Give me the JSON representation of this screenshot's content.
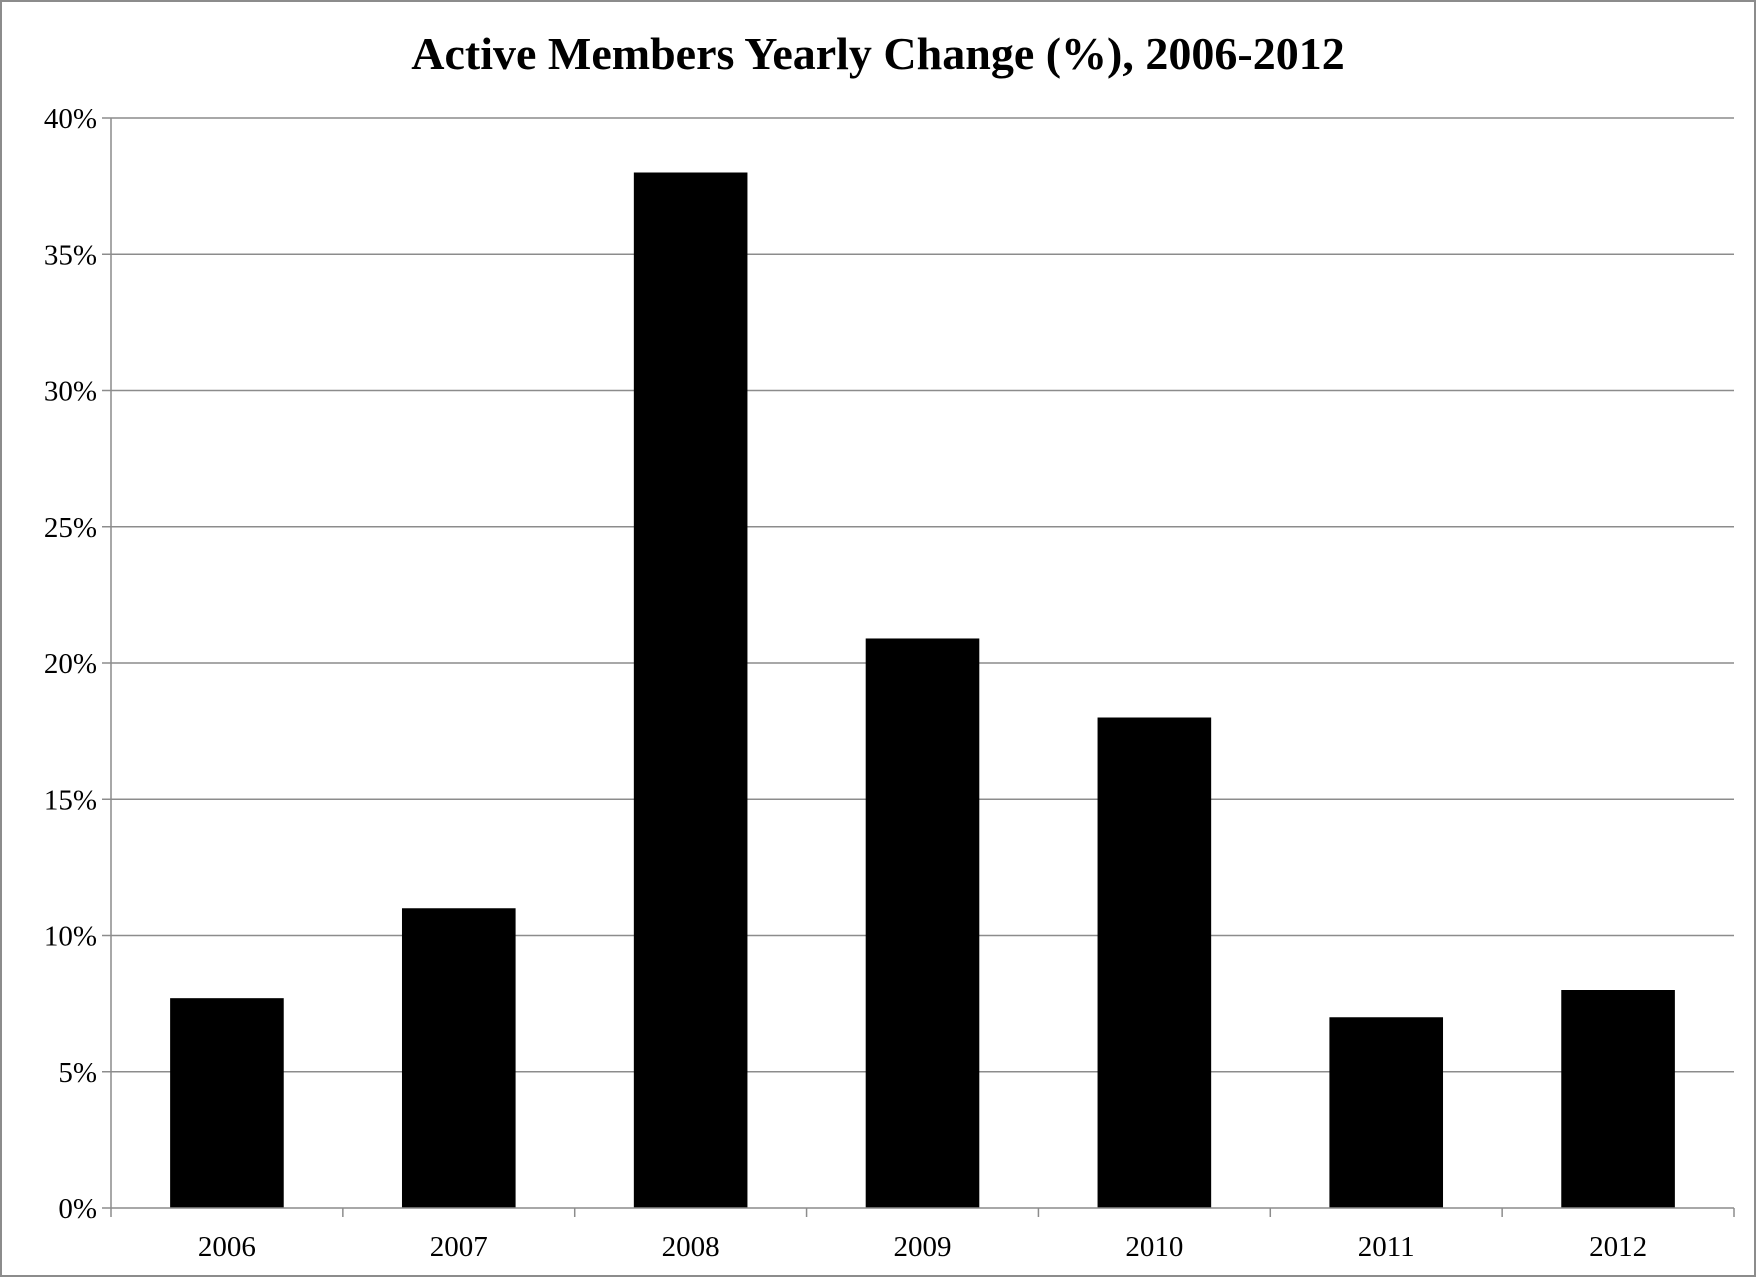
{
  "chart_data": {
    "type": "bar",
    "title": "Active Members Yearly Change (%), 2006-2012",
    "categories": [
      "2006",
      "2007",
      "2008",
      "2009",
      "2010",
      "2011",
      "2012"
    ],
    "values": [
      7.7,
      11.0,
      38.0,
      20.9,
      18.0,
      7.0,
      8.0
    ],
    "ylim": [
      0,
      40
    ],
    "yticks": [
      0,
      5,
      10,
      15,
      20,
      25,
      30,
      35,
      40
    ],
    "ytick_labels": [
      "0%",
      "5%",
      "10%",
      "15%",
      "20%",
      "25%",
      "30%",
      "35%",
      "40%"
    ],
    "xlabel": "",
    "ylabel": "",
    "grid": true,
    "legend": "none",
    "colors": {
      "bar": "#000000",
      "grid": "#8c8c8c",
      "axis": "#8c8c8c",
      "frame": "#8c8c8c"
    }
  }
}
